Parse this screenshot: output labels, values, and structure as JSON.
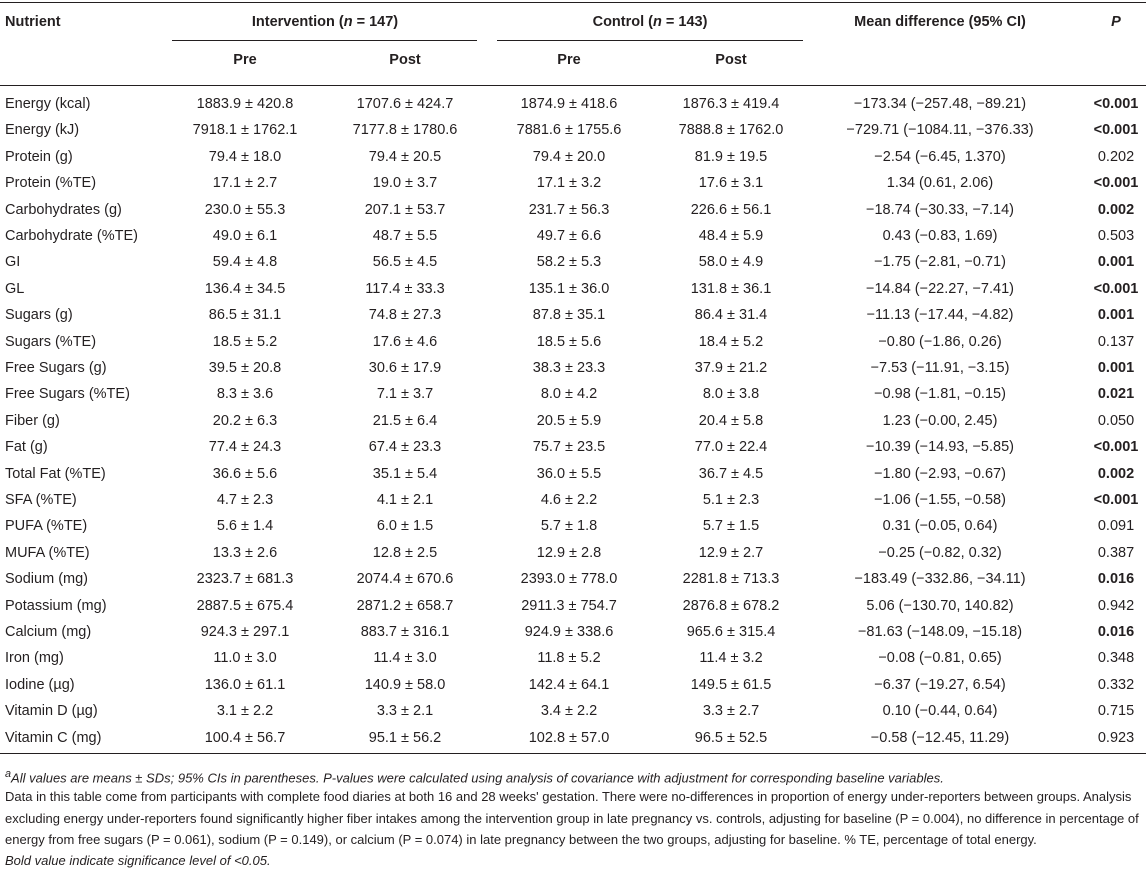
{
  "header": {
    "nutrient": "Nutrient",
    "groups": [
      {
        "parts": [
          "Intervention (",
          "n",
          " = 147)"
        ]
      },
      {
        "parts": [
          "Control (",
          "n",
          " = 143)"
        ]
      }
    ],
    "mean_difference": "Mean difference (95% CI)",
    "p": "P",
    "sub": [
      "Pre",
      "Post",
      "Pre",
      "Post"
    ]
  },
  "table": {
    "rows": [
      {
        "cells": [
          "Energy (kcal)",
          "1883.9 ± 420.8",
          "1707.6 ± 424.7",
          "1874.9 ± 418.6",
          "1876.3 ± 419.4",
          "−173.34 (−257.48, −89.21)",
          "<0.001"
        ],
        "p_bold": true
      },
      {
        "cells": [
          "Energy (kJ)",
          "7918.1 ± 1762.1",
          "7177.8 ± 1780.6",
          "7881.6 ± 1755.6",
          "7888.8 ± 1762.0",
          "−729.71 (−1084.11, −376.33)",
          "<0.001"
        ],
        "p_bold": true
      },
      {
        "cells": [
          "Protein (g)",
          "79.4 ± 18.0",
          "79.4 ± 20.5",
          "79.4 ± 20.0",
          "81.9 ± 19.5",
          "−2.54 (−6.45, 1.370)",
          "0.202"
        ],
        "p_bold": false
      },
      {
        "cells": [
          "Protein (%TE)",
          "17.1 ± 2.7",
          "19.0 ± 3.7",
          "17.1 ± 3.2",
          "17.6 ± 3.1",
          "1.34 (0.61, 2.06)",
          "<0.001"
        ],
        "p_bold": true
      },
      {
        "cells": [
          "Carbohydrates (g)",
          "230.0 ± 55.3",
          "207.1 ± 53.7",
          "231.7 ± 56.3",
          "226.6 ± 56.1",
          "−18.74 (−30.33, −7.14)",
          "0.002"
        ],
        "p_bold": true
      },
      {
        "cells": [
          "Carbohydrate (%TE)",
          "49.0 ± 6.1",
          "48.7 ± 5.5",
          "49.7 ± 6.6",
          "48.4 ± 5.9",
          "0.43 (−0.83, 1.69)",
          "0.503"
        ],
        "p_bold": false
      },
      {
        "cells": [
          "GI",
          "59.4 ± 4.8",
          "56.5 ± 4.5",
          "58.2 ± 5.3",
          "58.0 ± 4.9",
          "−1.75 (−2.81, −0.71)",
          "0.001"
        ],
        "p_bold": true
      },
      {
        "cells": [
          "GL",
          "136.4 ± 34.5",
          "117.4 ± 33.3",
          "135.1 ± 36.0",
          "131.8 ± 36.1",
          "−14.84 (−22.27, −7.41)",
          "<0.001"
        ],
        "p_bold": true
      },
      {
        "cells": [
          "Sugars (g)",
          "86.5 ± 31.1",
          "74.8 ± 27.3",
          "87.8 ± 35.1",
          "86.4 ± 31.4",
          "−11.13 (−17.44, −4.82)",
          "0.001"
        ],
        "p_bold": true
      },
      {
        "cells": [
          "Sugars (%TE)",
          "18.5 ± 5.2",
          "17.6 ± 4.6",
          "18.5 ± 5.6",
          "18.4 ± 5.2",
          "−0.80 (−1.86, 0.26)",
          "0.137"
        ],
        "p_bold": false
      },
      {
        "cells": [
          "Free Sugars (g)",
          "39.5 ± 20.8",
          "30.6 ± 17.9",
          "38.3 ± 23.3",
          "37.9 ± 21.2",
          "−7.53 (−11.91, −3.15)",
          "0.001"
        ],
        "p_bold": true
      },
      {
        "cells": [
          "Free Sugars (%TE)",
          "8.3 ± 3.6",
          "7.1 ± 3.7",
          "8.0 ± 4.2",
          "8.0 ± 3.8",
          "−0.98 (−1.81, −0.15)",
          "0.021"
        ],
        "p_bold": true
      },
      {
        "cells": [
          "Fiber (g)",
          "20.2 ± 6.3",
          "21.5 ± 6.4",
          "20.5 ± 5.9",
          "20.4 ± 5.8",
          "1.23 (−0.00, 2.45)",
          "0.050"
        ],
        "p_bold": false
      },
      {
        "cells": [
          "Fat (g)",
          "77.4 ± 24.3",
          "67.4 ± 23.3",
          "75.7 ± 23.5",
          "77.0 ± 22.4",
          "−10.39 (−14.93, −5.85)",
          "<0.001"
        ],
        "p_bold": true
      },
      {
        "cells": [
          "Total Fat (%TE)",
          "36.6 ± 5.6",
          "35.1 ± 5.4",
          "36.0 ± 5.5",
          "36.7 ± 4.5",
          "−1.80 (−2.93, −0.67)",
          "0.002"
        ],
        "p_bold": true
      },
      {
        "cells": [
          "SFA (%TE)",
          "4.7 ± 2.3",
          "4.1 ± 2.1",
          "4.6 ± 2.2",
          "5.1 ± 2.3",
          "−1.06 (−1.55, −0.58)",
          "<0.001"
        ],
        "p_bold": true
      },
      {
        "cells": [
          "PUFA (%TE)",
          "5.6 ± 1.4",
          "6.0 ± 1.5",
          "5.7 ± 1.8",
          "5.7 ± 1.5",
          "0.31 (−0.05, 0.64)",
          "0.091"
        ],
        "p_bold": false
      },
      {
        "cells": [
          "MUFA (%TE)",
          "13.3 ± 2.6",
          "12.8 ± 2.5",
          "12.9 ± 2.8",
          "12.9 ± 2.7",
          "−0.25 (−0.82, 0.32)",
          "0.387"
        ],
        "p_bold": false
      },
      {
        "cells": [
          "Sodium (mg)",
          "2323.7 ± 681.3",
          "2074.4 ± 670.6",
          "2393.0 ± 778.0",
          "2281.8 ± 713.3",
          "−183.49 (−332.86, −34.11)",
          "0.016"
        ],
        "p_bold": true
      },
      {
        "cells": [
          "Potassium (mg)",
          "2887.5 ± 675.4",
          "2871.2 ± 658.7",
          "2911.3 ± 754.7",
          "2876.8 ± 678.2",
          "5.06 (−130.70, 140.82)",
          "0.942"
        ],
        "p_bold": false
      },
      {
        "cells": [
          "Calcium (mg)",
          "924.3 ± 297.1",
          "883.7 ± 316.1",
          "924.9 ± 338.6",
          "965.6 ± 315.4",
          "−81.63 (−148.09, −15.18)",
          "0.016"
        ],
        "p_bold": true
      },
      {
        "cells": [
          "Iron (mg)",
          "11.0 ± 3.0",
          "11.4 ± 3.0",
          "11.8 ± 5.2",
          "11.4 ± 3.2",
          "−0.08 (−0.81, 0.65)",
          "0.348"
        ],
        "p_bold": false
      },
      {
        "cells": [
          "Iodine (µg)",
          "136.0 ± 61.1",
          "140.9 ± 58.0",
          "142.4 ± 64.1",
          "149.5 ± 61.5",
          "−6.37 (−19.27, 6.54)",
          "0.332"
        ],
        "p_bold": false
      },
      {
        "cells": [
          "Vitamin D (µg)",
          "3.1 ± 2.2",
          "3.3 ± 2.1",
          "3.4 ± 2.2",
          "3.3 ± 2.7",
          "0.10 (−0.44, 0.64)",
          "0.715"
        ],
        "p_bold": false
      },
      {
        "cells": [
          "Vitamin C (mg)",
          "100.4 ± 56.7",
          "95.1 ± 56.2",
          "102.8 ± 57.0",
          "96.5 ± 52.5",
          "−0.58 (−12.45, 11.29)",
          "0.923"
        ],
        "p_bold": false
      }
    ]
  },
  "footnotes": {
    "marker": "a",
    "notes": [
      "All values are means ± SDs; 95% CIs in parentheses. P-values were calculated using analysis of covariance with adjustment for corresponding baseline variables.",
      "Data in this table come from participants with complete food diaries at both 16 and 28 weeks' gestation. There were no-differences in proportion of energy under-reporters between groups. Analysis excluding energy under-reporters found significantly higher fiber intakes among the intervention group in late pregnancy vs. controls, adjusting for baseline (P = 0.004), no difference in percentage of energy from free sugars (P = 0.061), sodium (P = 0.149), or calcium (P = 0.074) in late pregnancy between the two groups, adjusting for baseline. % TE, percentage of total energy.",
      "Bold value indicate significance level of <0.05."
    ]
  }
}
